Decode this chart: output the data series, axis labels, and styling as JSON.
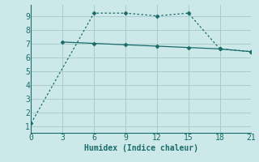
{
  "line1_x": [
    0,
    6,
    9,
    12,
    15,
    18,
    21
  ],
  "line1_y": [
    1.2,
    9.2,
    9.2,
    9.0,
    9.2,
    6.6,
    6.4
  ],
  "line2_x": [
    3,
    6,
    9,
    12,
    15,
    18,
    21
  ],
  "line2_y": [
    7.1,
    7.0,
    6.9,
    6.8,
    6.7,
    6.6,
    6.4
  ],
  "line_color": "#1a6b6b",
  "bg_color": "#cce8e8",
  "grid_color": "#aacccc",
  "xlabel": "Humidex (Indice chaleur)",
  "xlabel_fontsize": 7,
  "xlim": [
    0,
    21
  ],
  "ylim": [
    0.5,
    9.8
  ],
  "xticks": [
    0,
    3,
    6,
    9,
    12,
    15,
    18,
    21
  ],
  "yticks": [
    1,
    2,
    3,
    4,
    5,
    6,
    7,
    8,
    9
  ],
  "tick_fontsize": 7,
  "marker_size": 2.5
}
